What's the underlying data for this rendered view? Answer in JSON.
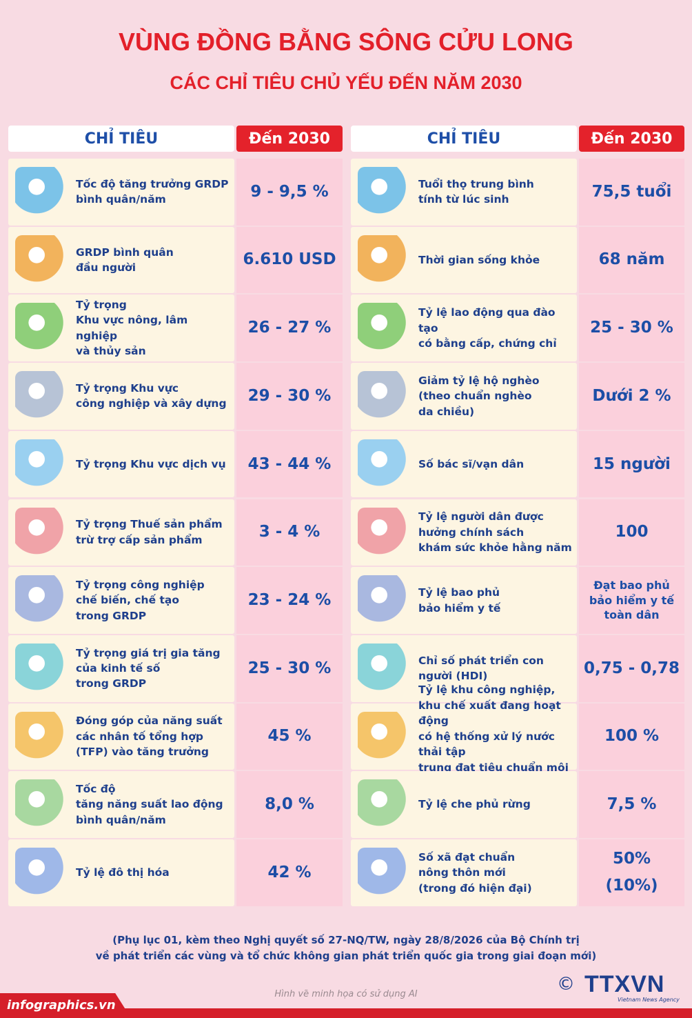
{
  "header": {
    "title": "VÙNG ĐỒNG BẰNG SÔNG CỬU LONG",
    "subtitle": "CÁC CHỈ TIÊU CHỦ YẾU ĐẾN NĂM 2030"
  },
  "left_table": {
    "columns": [
      "CHỈ TIÊU",
      "Đến 2030"
    ],
    "rows": [
      [
        "Tốc độ tăng trưởng GRDP\nbình quân/năm",
        "9 - 9,5 %"
      ],
      [
        "GRDP bình quân\nđầu người",
        "6.610 USD"
      ],
      [
        "Tỷ trọng\nKhu vực nông, lâm nghiệp\nvà thủy sản",
        "26 - 27 %"
      ],
      [
        "Tỷ trọng Khu vực\ncông nghiệp và xây dựng",
        "29 - 30 %"
      ],
      [
        "Tỷ trọng Khu vực dịch vụ",
        "43 - 44 %"
      ],
      [
        "Tỷ trọng Thuế sản phẩm\ntrừ trợ cấp sản phẩm",
        "3 - 4 %"
      ],
      [
        "Tỷ trọng công nghiệp\nchế biến, chế tạo\ntrong GRDP",
        "23 - 24 %"
      ],
      [
        "Tỷ trọng giá trị gia tăng\ncủa kinh tế số\ntrong GRDP",
        "25 - 30 %"
      ],
      [
        "Đóng góp của năng suất\ncác nhân tố tổng hợp\n(TFP) vào tăng trưởng",
        "45 %"
      ],
      [
        "Tốc độ\ntăng năng suất lao động\nbình quân/năm",
        "8,0 %"
      ],
      [
        "Tỷ lệ đô thị hóa",
        "42 %"
      ]
    ]
  },
  "right_table": {
    "columns": [
      "CHỈ TIÊU",
      "Đến 2030"
    ],
    "rows": [
      [
        "Tuổi thọ trung bình\ntính từ lúc sinh",
        "75,5 tuổi"
      ],
      [
        "Thời gian sống khỏe",
        "68 năm"
      ],
      [
        "Tỷ lệ lao động qua đào tạo\ncó bằng cấp, chứng chỉ",
        "25 - 30 %"
      ],
      [
        "Giảm tỷ lệ hộ nghèo\n(theo chuẩn nghèo\nda chiều)",
        "Dưới 2 %"
      ],
      [
        "Số bác sĩ/vạn dân",
        "15 người"
      ],
      [
        "Tỷ lệ người dân được\nhưởng chính sách\nkhám sức khỏe hằng năm",
        "100"
      ],
      [
        "Tỷ lệ bao phủ\nbảo hiểm y tế",
        "Đạt bao phủ\nbảo hiểm y tế\ntoàn dân"
      ],
      [
        "Chỉ số phát triển con\nngười (HDI)",
        "0,75 - 0,78"
      ],
      [
        "Tỷ lệ khu công nghiệp,\nkhu chế xuất đang hoạt động\ncó hệ thống xử lý nước thải tập\ntrung đạt tiêu chuẩn môi trường",
        "100 %"
      ],
      [
        "Tỷ lệ che phủ rừng",
        "7,5 %"
      ],
      [
        "Số xã đạt chuẩn\nnông thôn mới\n(trong đó hiện đại)",
        "50%\n(10%)"
      ]
    ]
  },
  "footer": {
    "note": "(Phụ lục 01, kèm theo Nghị quyết số 27-NQ/TW, ngày 28/8/2026 của Bộ Chính trị\nvề phát triển các vùng và tổ chức không gian phát triển quốc gia trong giai đoạn mới)",
    "ai_note": "Hình vẽ minh họa có sử dụng AI",
    "site": "infographics.vn",
    "copyright": "©",
    "agency": "TTXVN",
    "agency_sub": "Vietnam News Agency"
  }
}
